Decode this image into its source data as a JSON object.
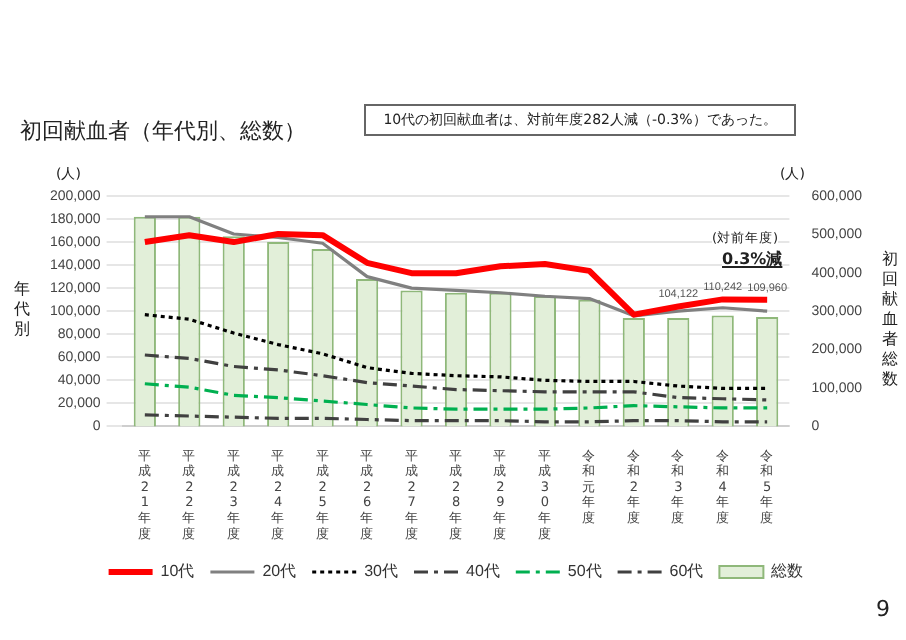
{
  "chart_data": {
    "type": "line",
    "title": "初回献血者（年代別、総数）",
    "ylabel": "年代別",
    "y2label": "初回献血者総数",
    "annotations": [
      "10代の初回献血者は、対前年度282人減（-0.3%）であった。",
      "(人)",
      "(人)",
      "(対前年度)",
      "0.3%減",
      "9"
    ],
    "categories": [
      "平成21年度",
      "平成22年度",
      "平成23年度",
      "平成24年度",
      "平成25年度",
      "平成26年度",
      "平成27年度",
      "平成28年度",
      "平成29年度",
      "平成30年度",
      "令和元年度",
      "令和2年度",
      "令和3年度",
      "令和4年度",
      "令和5年度"
    ],
    "series": [
      {
        "name": "総数",
        "type": "bar",
        "axis": "y2",
        "color": "#e2efd9",
        "values": [
          546000,
          546000,
          495000,
          480000,
          462000,
          384000,
          354000,
          348000,
          348000,
          339000,
          330000,
          282000,
          282000,
          289000,
          285000
        ]
      },
      {
        "name": "10代",
        "color": "#ff0000",
        "line_style": "solid",
        "values": [
          160000,
          166000,
          160000,
          167000,
          166000,
          142000,
          133000,
          133000,
          139000,
          141000,
          135000,
          97000,
          104122,
          110242,
          109960
        ],
        "value_labels": [
          null,
          null,
          null,
          null,
          null,
          null,
          null,
          null,
          null,
          null,
          null,
          null,
          "104,122",
          "110,242",
          "109,960"
        ]
      },
      {
        "name": "20代",
        "color": "#808080",
        "line_style": "solid",
        "values": [
          182000,
          182000,
          167000,
          164000,
          159000,
          130000,
          120000,
          118000,
          116000,
          113000,
          111000,
          96000,
          100000,
          103000,
          100000
        ]
      },
      {
        "name": "30代",
        "color": "#000000",
        "line_style": "dotted",
        "values": [
          97000,
          93000,
          81000,
          71000,
          63000,
          51000,
          46000,
          44000,
          43000,
          40000,
          39000,
          39000,
          35000,
          33000,
          33000
        ]
      },
      {
        "name": "40代",
        "color": "#404040",
        "line_style": "dashed",
        "values": [
          62000,
          59000,
          52000,
          49000,
          44000,
          38000,
          35000,
          32000,
          31000,
          30000,
          30000,
          30000,
          25000,
          24000,
          23000
        ]
      },
      {
        "name": "50代",
        "color": "#00b050",
        "line_style": "dashed",
        "values": [
          37000,
          34000,
          27000,
          25000,
          22000,
          19000,
          16000,
          15000,
          15000,
          15000,
          16000,
          18000,
          17000,
          16000,
          16000
        ]
      },
      {
        "name": "60代",
        "color": "#404040",
        "line_style": "dashed",
        "values": [
          10000,
          9000,
          8000,
          7000,
          7000,
          6000,
          5000,
          5000,
          5000,
          4000,
          4000,
          5000,
          5000,
          4000,
          4000
        ]
      }
    ],
    "ylim": [
      0,
      200000
    ],
    "yticks": [
      0,
      {
        "value": 20000,
        "label": "20,000"
      },
      {
        "value": 40000,
        "label": "40,000"
      },
      {
        "value": 60000,
        "label": "60,000"
      },
      {
        "value": 80000,
        "label": "80,000"
      },
      {
        "value": 100000,
        "label": "100,000"
      },
      {
        "value": 120000,
        "label": "120,000"
      },
      {
        "value": 140000,
        "label": "140,000"
      },
      {
        "value": 160000,
        "label": "160,000"
      },
      {
        "value": 180000,
        "label": "180,000"
      },
      {
        "value": 200000,
        "label": "200,000"
      }
    ],
    "y2lim": [
      0,
      600000
    ],
    "y2ticks": [
      0,
      {
        "value": 100000,
        "label": "100,000"
      },
      {
        "value": 200000,
        "label": "200,000"
      },
      {
        "value": 300000,
        "label": "300,000"
      },
      {
        "value": 400000,
        "label": "400,000"
      },
      {
        "value": 500000,
        "label": "500,000"
      },
      {
        "value": 600000,
        "label": "600,000"
      }
    ],
    "grid": "y",
    "legend": "bottom",
    "marker": "none"
  }
}
